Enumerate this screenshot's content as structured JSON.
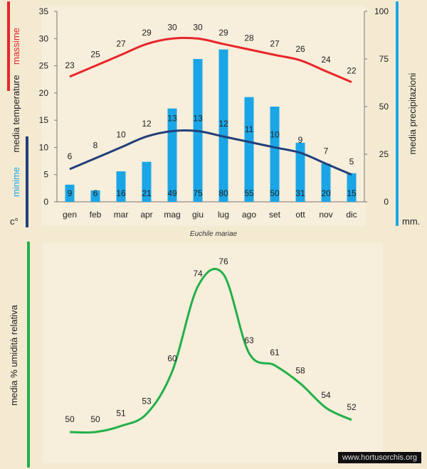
{
  "caption": "Euchile mariae",
  "credit": "www.hortusorchis.org",
  "colors": {
    "max": "#e8262a",
    "min": "#213f7a",
    "precip": "#1aa6e6",
    "humidity": "#23b04a",
    "bg": "#f4ead2"
  },
  "chart_data": [
    {
      "type": "bar+line",
      "categories": [
        "gen",
        "feb",
        "mar",
        "apr",
        "mag",
        "giu",
        "lug",
        "ago",
        "set",
        "ott",
        "nov",
        "dic"
      ],
      "series": [
        {
          "name": "massime",
          "axis": "left",
          "kind": "line",
          "values": [
            23,
            25,
            27,
            29,
            30,
            30,
            29,
            28,
            27,
            26,
            24,
            22
          ]
        },
        {
          "name": "minime",
          "axis": "left",
          "kind": "line",
          "values": [
            6,
            8,
            10,
            12,
            13,
            13,
            12,
            11,
            10,
            9,
            7,
            5
          ]
        },
        {
          "name": "media precipitazioni",
          "axis": "right",
          "kind": "bar",
          "values": [
            9,
            6,
            16,
            21,
            49,
            75,
            80,
            55,
            50,
            31,
            20,
            15
          ]
        }
      ],
      "ylim_left": [
        0,
        35
      ],
      "yticks_left": [
        0,
        5,
        10,
        15,
        20,
        25,
        30,
        35
      ],
      "ylim_right": [
        0,
        100
      ],
      "yticks_right": [
        0,
        25,
        50,
        75,
        100
      ],
      "left_labels": {
        "top": "massime",
        "middle": "media  temperature",
        "bottom": "minime",
        "unit": "c°"
      },
      "right_labels": {
        "title": "media  precipitazioni",
        "unit": "mm."
      }
    },
    {
      "type": "line",
      "categories": [
        "gen",
        "feb",
        "mar",
        "apr",
        "mag",
        "giu",
        "lug",
        "ago",
        "set",
        "ott",
        "nov",
        "dic"
      ],
      "series": [
        {
          "name": "media % umidità relativa",
          "values": [
            50,
            50,
            51,
            53,
            60,
            74,
            76,
            63,
            61,
            58,
            54,
            52
          ]
        }
      ],
      "ylabel": "media %  umidità relativa"
    }
  ]
}
